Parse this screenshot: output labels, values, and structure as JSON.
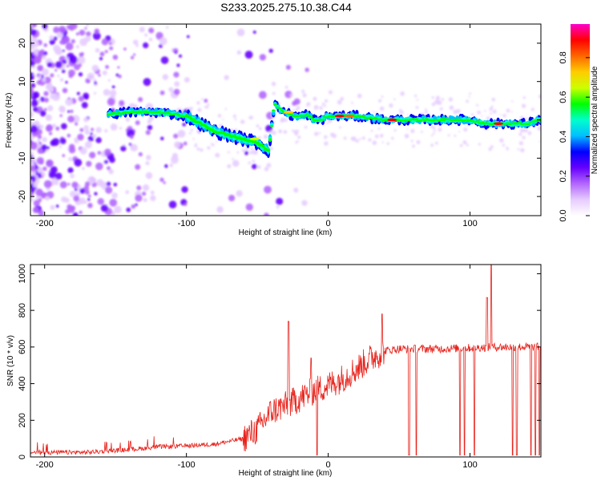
{
  "title": "S233.2025.275.10.38.C44",
  "colors": {
    "snr_line": "#e8231c",
    "frame": "#000000",
    "colorbar": [
      "#ffffff",
      "#e6ccff",
      "#b366ff",
      "#6600ff",
      "#0000ff",
      "#00bfff",
      "#00ffcc",
      "#00ff00",
      "#ccff00",
      "#ffcc00",
      "#ff6600",
      "#ff0000",
      "#ff00cc"
    ]
  },
  "chart_data": [
    {
      "type": "heatmap",
      "xlabel": "Height of straight line (km)",
      "ylabel": "Frequency (Hz)",
      "xlim": [
        -210,
        150
      ],
      "ylim": [
        -25,
        25
      ],
      "xticks": [
        -200,
        -100,
        0,
        100
      ],
      "yticks": [
        -20,
        -10,
        0,
        10,
        20
      ],
      "colorbar": {
        "label": "Normalized spectral amplitude",
        "range": [
          0,
          0.97
        ],
        "ticks": [
          "0.0",
          "0.2",
          "0.4",
          "0.6",
          "0.8"
        ]
      },
      "ridge": {
        "x": [
          -155,
          -140,
          -120,
          -100,
          -90,
          -80,
          -70,
          -60,
          -50,
          -42,
          -38,
          -35,
          -30,
          -25,
          -20,
          -15,
          -10,
          -5,
          0,
          20,
          40,
          60,
          80,
          100,
          110,
          120,
          140,
          150
        ],
        "freq": [
          1.5,
          2,
          2,
          1,
          -1,
          -3,
          -4,
          -5,
          -6,
          -8,
          4,
          3,
          2,
          1,
          1,
          1.5,
          0,
          0,
          1,
          1,
          0,
          0,
          0,
          0,
          -1,
          -1,
          -1,
          0
        ]
      }
    },
    {
      "type": "line",
      "xlabel": "Height of straight line (km)",
      "ylabel": "SNR (10 * v/v)",
      "xlim": [
        -210,
        150
      ],
      "ylim": [
        0,
        1050
      ],
      "xticks": [
        -200,
        -100,
        0,
        100
      ],
      "yticks": [
        0,
        200,
        400,
        600,
        800,
        1000
      ],
      "trend": {
        "x": [
          -210,
          -170,
          -140,
          -120,
          -100,
          -80,
          -60,
          -50,
          -40,
          -30,
          -20,
          -10,
          0,
          10,
          20,
          30,
          40,
          50,
          60,
          80,
          100,
          120,
          150
        ],
        "y": [
          25,
          25,
          40,
          55,
          60,
          70,
          100,
          150,
          250,
          280,
          320,
          360,
          390,
          430,
          480,
          540,
          580,
          590,
          590,
          590,
          595,
          600,
          600
        ]
      },
      "dropouts": [
        {
          "x": 57,
          "y": 10
        },
        {
          "x": 62,
          "y": 10
        },
        {
          "x": 93,
          "y": 10
        },
        {
          "x": 96,
          "y": 10
        },
        {
          "x": 103,
          "y": 10
        },
        {
          "x": 130,
          "y": 10
        },
        {
          "x": 133,
          "y": 10
        },
        {
          "x": 143,
          "y": 10
        },
        {
          "x": 146,
          "y": 10
        },
        {
          "x": 149,
          "y": 10
        },
        {
          "x": -12,
          "y": 5
        },
        {
          "x": -8,
          "y": 5
        }
      ],
      "spikes": [
        {
          "x": -28,
          "y": 740
        },
        {
          "x": -12,
          "y": 540
        },
        {
          "x": 38,
          "y": 780
        },
        {
          "x": 115,
          "y": 1050
        },
        {
          "x": 112,
          "y": 870
        }
      ]
    }
  ]
}
